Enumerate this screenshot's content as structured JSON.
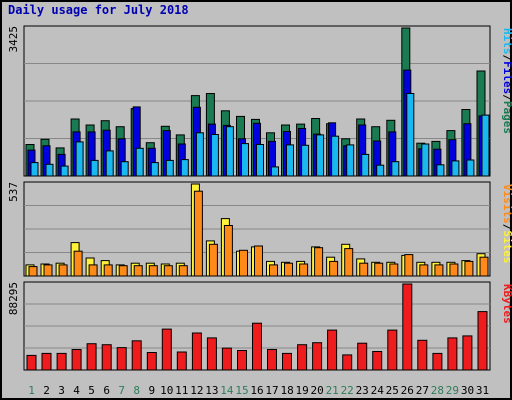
{
  "title": "Daily usage for July 2018",
  "colors": {
    "hits": "#1a7a52",
    "files": "#0000e0",
    "pages": "#1ab8f0",
    "visits": "#fff03a",
    "sites": "#ff8a1a",
    "kbytes": "#ee1c1c",
    "weekend_label": "#2e7d5a",
    "weekday_label": "#000000",
    "panel": "#c0c0c0"
  },
  "chart_data": [
    {
      "type": "bar",
      "name": "hits-files-pages",
      "ymax_label": "3425",
      "ymax": 3425,
      "side_label": [
        "Pages",
        "/",
        "Files",
        "/",
        "Hits"
      ],
      "categories": [
        "1",
        "2",
        "3",
        "4",
        "5",
        "6",
        "7",
        "8",
        "9",
        "10",
        "11",
        "12",
        "13",
        "14",
        "15",
        "16",
        "17",
        "18",
        "19",
        "20",
        "21",
        "22",
        "23",
        "24",
        "25",
        "26",
        "27",
        "28",
        "29",
        "30",
        "31"
      ],
      "series": [
        {
          "name": "Hits",
          "values": [
            730,
            850,
            650,
            1320,
            1180,
            1280,
            1140,
            1560,
            770,
            1150,
            950,
            1860,
            1910,
            1510,
            1380,
            1310,
            1000,
            1180,
            1200,
            1330,
            1210,
            860,
            1320,
            1140,
            1290,
            3425,
            760,
            800,
            1050,
            1540,
            2430
          ]
        },
        {
          "name": "Files",
          "values": [
            600,
            700,
            500,
            1020,
            1020,
            1060,
            860,
            1600,
            640,
            1050,
            740,
            1590,
            1200,
            1170,
            860,
            1220,
            800,
            1030,
            1100,
            970,
            1230,
            700,
            1180,
            810,
            1020,
            2450,
            630,
            620,
            840,
            1210,
            1390
          ]
        },
        {
          "name": "Pages",
          "values": [
            310,
            270,
            230,
            790,
            360,
            580,
            330,
            640,
            310,
            360,
            380,
            1000,
            960,
            1140,
            750,
            730,
            210,
            720,
            710,
            950,
            920,
            720,
            500,
            250,
            330,
            1910,
            740,
            260,
            350,
            370,
            1410
          ]
        }
      ]
    },
    {
      "type": "bar",
      "name": "visits-sites",
      "ymax_label": "537",
      "ymax": 537,
      "side_label": [
        "Sites",
        "/",
        "Visits"
      ],
      "categories": [
        "1",
        "2",
        "3",
        "4",
        "5",
        "6",
        "7",
        "8",
        "9",
        "10",
        "11",
        "12",
        "13",
        "14",
        "15",
        "16",
        "17",
        "18",
        "19",
        "20",
        "21",
        "22",
        "23",
        "24",
        "25",
        "26",
        "27",
        "28",
        "29",
        "30",
        "31"
      ],
      "series": [
        {
          "name": "Visits",
          "values": [
            65,
            70,
            75,
            195,
            105,
            90,
            65,
            75,
            75,
            70,
            75,
            537,
            205,
            335,
            145,
            170,
            85,
            80,
            85,
            170,
            110,
            185,
            100,
            80,
            80,
            120,
            80,
            80,
            80,
            90,
            130
          ]
        },
        {
          "name": "Sites",
          "values": [
            55,
            65,
            65,
            145,
            65,
            65,
            60,
            60,
            60,
            60,
            60,
            495,
            185,
            295,
            150,
            175,
            65,
            75,
            70,
            165,
            85,
            160,
            75,
            75,
            70,
            125,
            65,
            65,
            70,
            85,
            110
          ]
        }
      ]
    },
    {
      "type": "bar",
      "name": "kbytes",
      "ymax_label": "88295",
      "ymax": 88295,
      "side_label": [
        "KBytes"
      ],
      "categories": [
        "1",
        "2",
        "3",
        "4",
        "5",
        "6",
        "7",
        "8",
        "9",
        "10",
        "11",
        "12",
        "13",
        "14",
        "15",
        "16",
        "17",
        "18",
        "19",
        "20",
        "21",
        "22",
        "23",
        "24",
        "25",
        "26",
        "27",
        "28",
        "29",
        "30",
        "31"
      ],
      "series": [
        {
          "name": "KBytes",
          "values": [
            15000,
            17000,
            17000,
            21000,
            27000,
            26000,
            23000,
            30000,
            18000,
            42000,
            18500,
            38000,
            33000,
            22500,
            20000,
            48000,
            21000,
            17000,
            26000,
            28000,
            41000,
            15500,
            27500,
            19000,
            41000,
            88295,
            30500,
            17000,
            33000,
            35000,
            60000
          ]
        }
      ]
    }
  ]
}
